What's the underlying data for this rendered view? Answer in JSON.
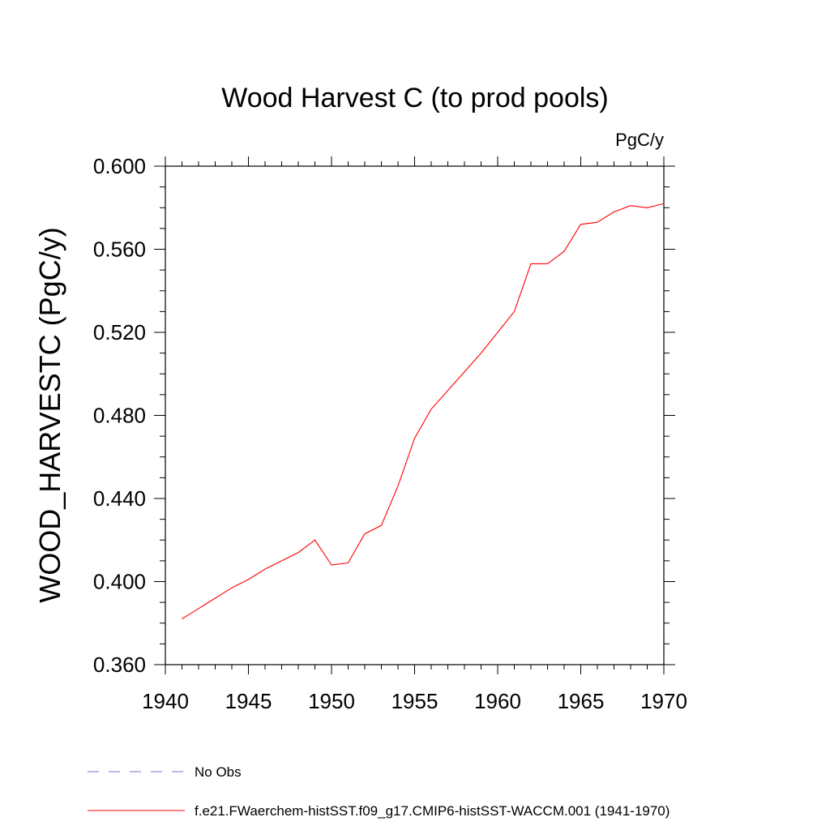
{
  "chart_data": {
    "type": "line",
    "title": "Wood Harvest C (to prod pools)",
    "units_label": "PgC/y",
    "xlabel": "",
    "ylabel": "WOOD_HARVESTC  (PgC/y)",
    "xlim": [
      1940,
      1970
    ],
    "ylim": [
      0.36,
      0.6
    ],
    "x_ticks": [
      1940,
      1945,
      1950,
      1955,
      1960,
      1965,
      1970
    ],
    "x_tick_labels": [
      "1940",
      "1945",
      "1950",
      "1955",
      "1960",
      "1965",
      "1970"
    ],
    "y_ticks": [
      0.36,
      0.4,
      0.44,
      0.48,
      0.52,
      0.56,
      0.6
    ],
    "y_tick_labels": [
      "0.360",
      "0.400",
      "0.440",
      "0.480",
      "0.520",
      "0.560",
      "0.600"
    ],
    "grid": false,
    "legend_position": "bottom-left",
    "series": [
      {
        "name": "No Obs",
        "color": "#7b6fc4",
        "dash": "dashed",
        "x": [],
        "values": []
      },
      {
        "name": "f.e21.FWaerchem-histSST.f09_g17.CMIP6-histSST-WACCM.001 (1941-1970)",
        "color": "#ff0000",
        "dash": "solid",
        "x": [
          1941,
          1942,
          1943,
          1944,
          1945,
          1946,
          1947,
          1948,
          1949,
          1950,
          1951,
          1952,
          1953,
          1954,
          1955,
          1956,
          1957,
          1958,
          1959,
          1960,
          1961,
          1962,
          1963,
          1964,
          1965,
          1966,
          1967,
          1968,
          1969,
          1970
        ],
        "values": [
          0.382,
          0.387,
          0.392,
          0.397,
          0.401,
          0.406,
          0.41,
          0.414,
          0.42,
          0.408,
          0.409,
          0.423,
          0.427,
          0.446,
          0.469,
          0.483,
          0.492,
          0.501,
          0.51,
          0.52,
          0.53,
          0.553,
          0.553,
          0.559,
          0.572,
          0.573,
          0.578,
          0.581,
          0.58,
          0.582
        ]
      }
    ]
  }
}
